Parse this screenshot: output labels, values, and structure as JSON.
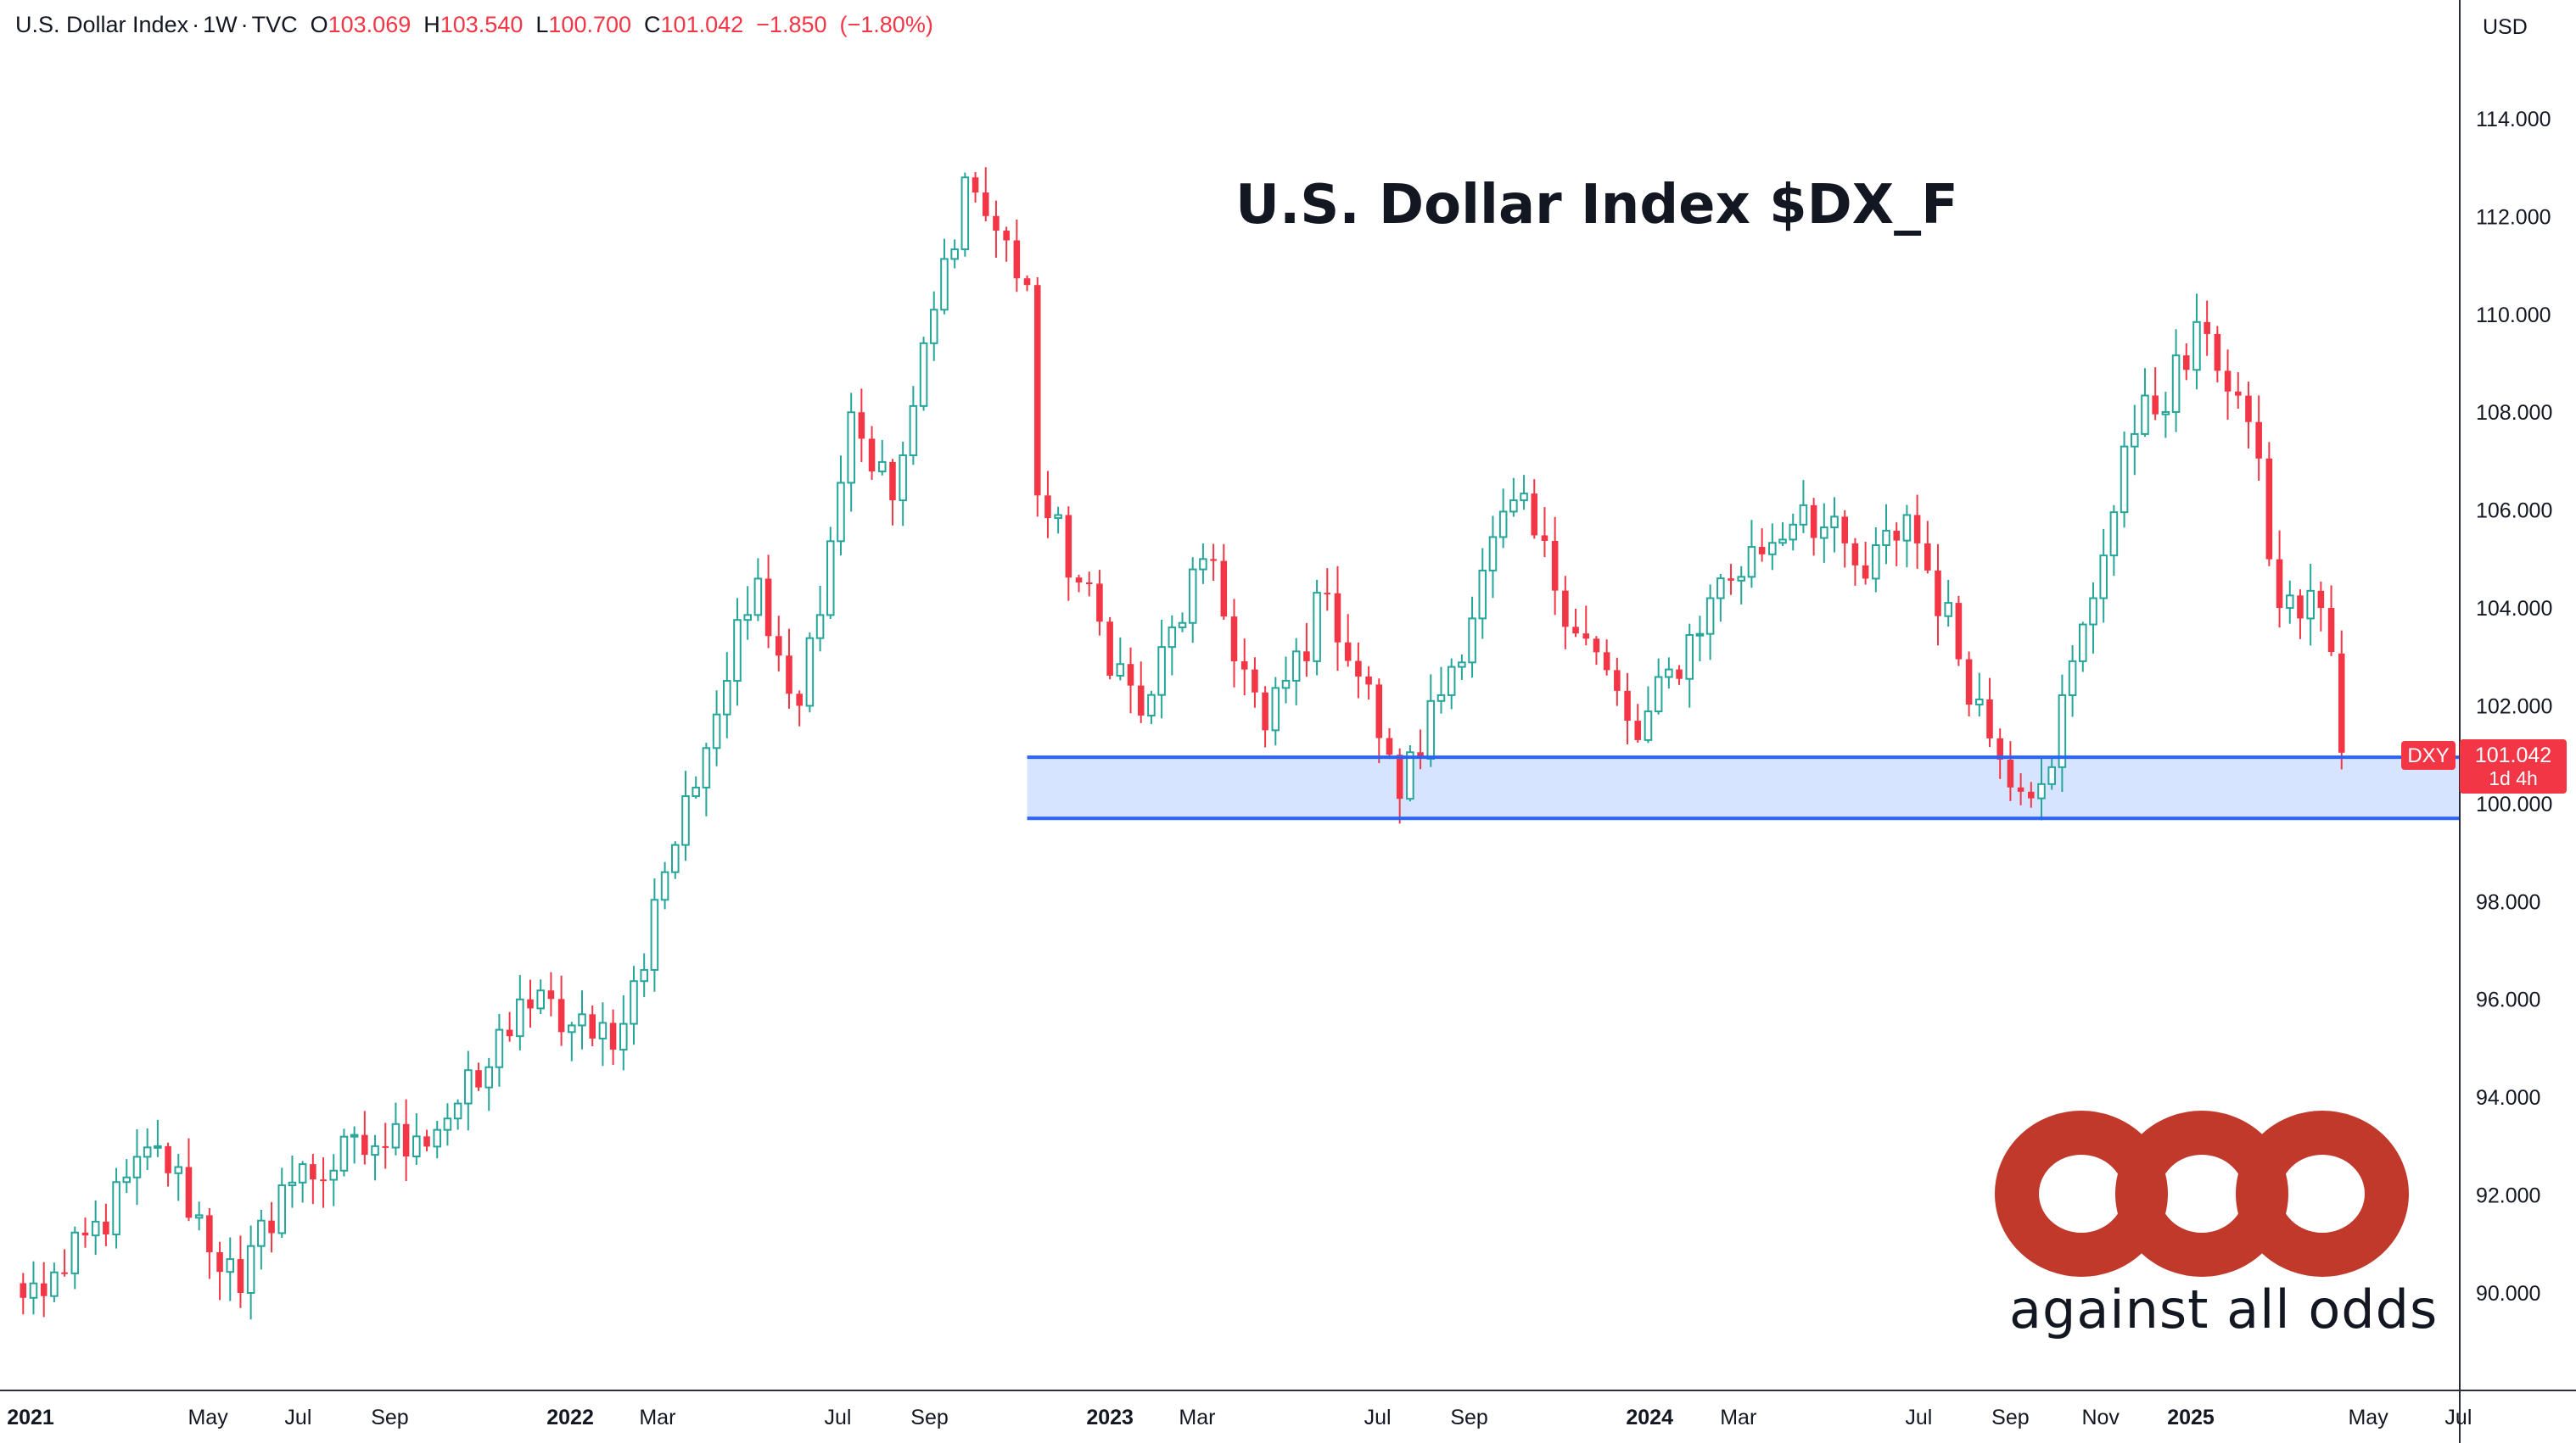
{
  "header": {
    "symbol": "U.S. Dollar Index",
    "interval": "1W",
    "source": "TVC",
    "open_label": "O",
    "open": "103.069",
    "high_label": "H",
    "high": "103.540",
    "low_label": "L",
    "low": "100.700",
    "close_label": "C",
    "close": "101.042",
    "change": "−1.850",
    "change_pct": "(−1.80%)"
  },
  "title": "U.S. Dollar Index $DX_F",
  "currency": "USD",
  "price_tag": {
    "ticker": "DXY",
    "price": "101.042",
    "countdown": "1d 4h"
  },
  "logo": {
    "text": "against all odds"
  },
  "colors": {
    "up": "#26a69a",
    "down": "#f23645",
    "zone_fill": "#d6e4ff",
    "zone_line": "#2962ff",
    "logo_red": "#c0392b"
  },
  "chart_data": {
    "type": "candlestick",
    "interval": "1W",
    "ylim": [
      88,
      115
    ],
    "y_ticks": [
      "90.000",
      "92.000",
      "94.000",
      "96.000",
      "98.000",
      "100.000",
      "102.000",
      "104.000",
      "106.000",
      "108.000",
      "110.000",
      "112.000",
      "114.000"
    ],
    "x_ticks": [
      {
        "label": "2021",
        "date": "2021-01-01"
      },
      {
        "label": "May",
        "date": "2021-05-01"
      },
      {
        "label": "Jul",
        "date": "2021-07-01"
      },
      {
        "label": "Sep",
        "date": "2021-09-01"
      },
      {
        "label": "2022",
        "date": "2022-01-01"
      },
      {
        "label": "Mar",
        "date": "2022-03-01"
      },
      {
        "label": "Jul",
        "date": "2022-07-01"
      },
      {
        "label": "Sep",
        "date": "2022-09-01"
      },
      {
        "label": "2023",
        "date": "2023-01-01"
      },
      {
        "label": "Mar",
        "date": "2023-03-01"
      },
      {
        "label": "Jul",
        "date": "2023-07-01"
      },
      {
        "label": "Sep",
        "date": "2023-09-01"
      },
      {
        "label": "2024",
        "date": "2024-01-01"
      },
      {
        "label": "Mar",
        "date": "2024-03-01"
      },
      {
        "label": "Jul",
        "date": "2024-07-01"
      },
      {
        "label": "Sep",
        "date": "2024-09-01"
      },
      {
        "label": "Nov",
        "date": "2024-11-01"
      },
      {
        "label": "2025",
        "date": "2025-01-01"
      },
      {
        "label": "May",
        "date": "2025-05-01"
      },
      {
        "label": "Jul",
        "date": "2025-07-01"
      }
    ],
    "support_zone": {
      "from": "2022-11-06",
      "upper": 100.95,
      "lower": 99.7
    },
    "last_price": 101.042,
    "anchors": [
      {
        "date": "2020-12-27",
        "close": 89.9
      },
      {
        "date": "2021-01-24",
        "close": 90.4
      },
      {
        "date": "2021-03-28",
        "close": 93.0
      },
      {
        "date": "2021-05-23",
        "close": 90.0
      },
      {
        "date": "2021-06-20",
        "close": 92.2
      },
      {
        "date": "2021-08-22",
        "close": 93.0
      },
      {
        "date": "2021-09-19",
        "close": 93.2
      },
      {
        "date": "2021-10-31",
        "close": 94.2
      },
      {
        "date": "2021-11-28",
        "close": 96.0
      },
      {
        "date": "2022-01-16",
        "close": 95.2
      },
      {
        "date": "2022-02-06",
        "close": 95.5
      },
      {
        "date": "2022-03-06",
        "close": 98.6
      },
      {
        "date": "2022-05-08",
        "close": 104.6
      },
      {
        "date": "2022-06-05",
        "close": 102.0
      },
      {
        "date": "2022-07-10",
        "close": 108.0
      },
      {
        "date": "2022-08-07",
        "close": 106.2
      },
      {
        "date": "2022-09-25",
        "close": 112.8
      },
      {
        "date": "2022-11-06",
        "close": 110.6
      },
      {
        "date": "2022-11-13",
        "close": 106.3
      },
      {
        "date": "2023-01-22",
        "close": 101.8
      },
      {
        "date": "2023-03-05",
        "close": 105.0
      },
      {
        "date": "2023-04-16",
        "close": 101.5
      },
      {
        "date": "2023-05-28",
        "close": 104.3
      },
      {
        "date": "2023-07-09",
        "close": 101.0
      },
      {
        "date": "2023-07-16",
        "close": 100.1
      },
      {
        "date": "2023-10-01",
        "close": 106.2
      },
      {
        "date": "2023-12-24",
        "close": 101.3
      },
      {
        "date": "2024-02-11",
        "close": 104.2
      },
      {
        "date": "2024-04-14",
        "close": 106.1
      },
      {
        "date": "2024-05-26",
        "close": 104.6
      },
      {
        "date": "2024-06-23",
        "close": 105.9
      },
      {
        "date": "2024-08-25",
        "close": 100.9
      },
      {
        "date": "2024-09-22",
        "close": 100.4
      },
      {
        "date": "2024-10-27",
        "close": 104.2
      },
      {
        "date": "2024-11-17",
        "close": 107.3
      },
      {
        "date": "2025-01-12",
        "close": 109.6
      },
      {
        "date": "2025-02-09",
        "close": 107.8
      },
      {
        "date": "2025-03-02",
        "close": 104.0
      },
      {
        "date": "2025-03-30",
        "close": 104.0
      },
      {
        "date": "2025-04-06",
        "close": 103.1
      },
      {
        "date": "2025-04-13",
        "close": 101.042
      }
    ]
  }
}
